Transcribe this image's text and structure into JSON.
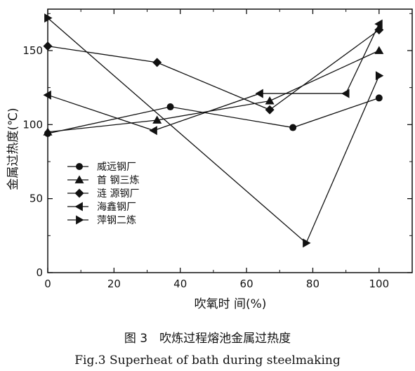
{
  "chart_data": {
    "type": "line",
    "title": "",
    "xlabel": "吹氧时 间(%)",
    "ylabel": "金属过热度(℃)",
    "xlim": [
      0,
      110
    ],
    "ylim": [
      0,
      178
    ],
    "xticks": [
      0,
      20,
      40,
      60,
      80,
      100
    ],
    "yticks": [
      0,
      50,
      100,
      150
    ],
    "grid": false,
    "legend_position": "left-middle",
    "series": [
      {
        "name": "威远钢厂",
        "marker": "circle",
        "x": [
          0,
          37,
          74,
          100
        ],
        "y": [
          94,
          112,
          98,
          118
        ]
      },
      {
        "name": "首 钢三炼",
        "marker": "triangle-up",
        "x": [
          0,
          33,
          67,
          100
        ],
        "y": [
          95,
          103,
          116,
          150
        ]
      },
      {
        "name": "涟 源钢厂",
        "marker": "diamond",
        "x": [
          0,
          33,
          67,
          100
        ],
        "y": [
          153,
          142,
          110,
          164
        ]
      },
      {
        "name": "海鑫钢厂",
        "marker": "triangle-left",
        "x": [
          0,
          32,
          64,
          90,
          100
        ],
        "y": [
          120,
          96,
          121,
          121,
          168
        ]
      },
      {
        "name": "萍钢二炼",
        "marker": "triangle-right",
        "x": [
          0,
          78,
          100
        ],
        "y": [
          172,
          20,
          133
        ]
      }
    ]
  },
  "caption": {
    "cn": "图 3　吹炼过程熔池金属过热度",
    "en": "Fig.3 Superheat of bath during steelmaking"
  },
  "colors": {
    "ink": "#111111",
    "background": "#ffffff"
  }
}
